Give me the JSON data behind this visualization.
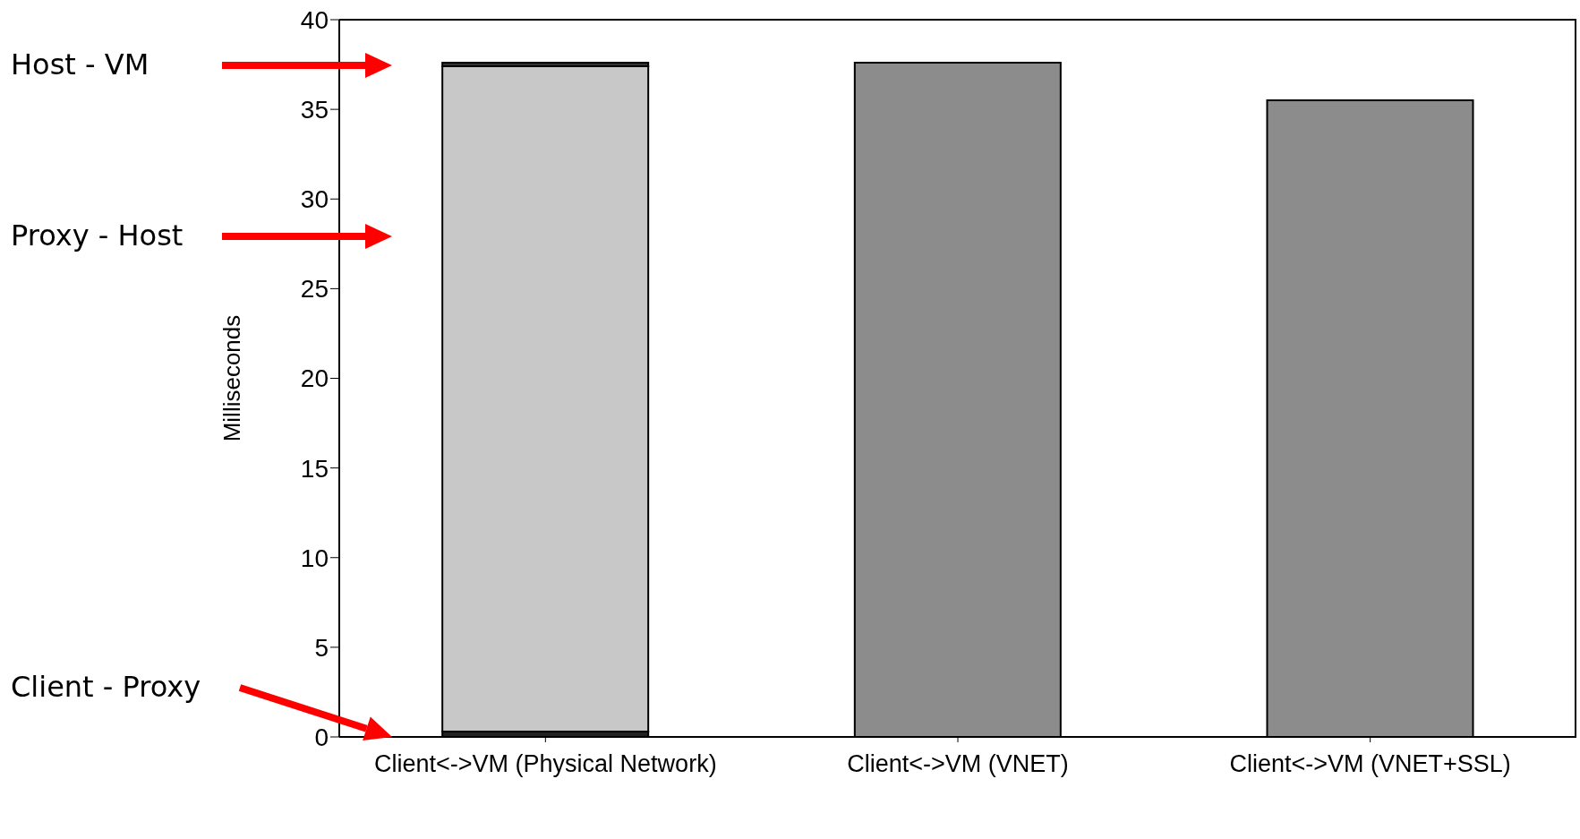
{
  "chart_data": {
    "type": "bar",
    "stacked": true,
    "ylabel": "Milliseconds",
    "categories": [
      "Client<->VM (Physical Network)",
      "Client<->VM (VNET)",
      "Client<->VM (VNET+SSL)"
    ],
    "series": [
      {
        "color": "#222222",
        "values": [
          0.3,
          null,
          null
        ]
      },
      {
        "color": "#c8c8c8",
        "values": [
          37.1,
          null,
          null
        ]
      },
      {
        "color": "#333333",
        "values": [
          0.2,
          null,
          null
        ]
      },
      {
        "color": "#8c8c8c",
        "values": [
          null,
          37.6,
          35.5
        ]
      }
    ],
    "annotations": [
      "Host - VM",
      "Proxy - Host",
      "Client - Proxy"
    ],
    "ylim": [
      0,
      40
    ],
    "yticks": [
      0,
      5,
      10,
      15,
      20,
      25,
      30,
      35,
      40
    ],
    "grid": false,
    "legend": false
  }
}
